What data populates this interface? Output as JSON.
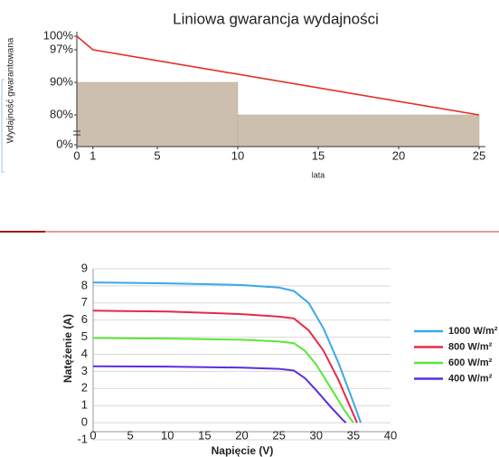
{
  "chart_data": [
    {
      "type": "line",
      "title": "Liniowa gwarancja wydajności",
      "xlabel": "lata",
      "ylabel": "Wydajność gwarantowana",
      "x": [
        0,
        1,
        25
      ],
      "series": [
        {
          "color": "#e0302a",
          "values": [
            100,
            97,
            80
          ]
        }
      ],
      "bars": {
        "bins": [
          0,
          10,
          25
        ],
        "values": [
          90,
          80
        ],
        "color": "#cdbfae"
      },
      "xlim": [
        0,
        25
      ],
      "xticks": [
        0,
        1,
        5,
        10,
        15,
        20,
        25
      ],
      "ylim": [
        0,
        100
      ],
      "yticks": [
        {
          "value": 0,
          "label": "0%"
        },
        {
          "value": 80,
          "label": "80%"
        },
        {
          "value": 90,
          "label": "90%"
        },
        {
          "value": 97,
          "label": "97%"
        },
        {
          "value": 100,
          "label": "100%"
        }
      ],
      "grid": false
    },
    {
      "type": "line",
      "xlabel": "Napięcie (V)",
      "ylabel": "Natężenie (A)",
      "series": [
        {
          "name": "1000 W/m²",
          "color": "#3aa8e8",
          "x": [
            0,
            10,
            20,
            25,
            27,
            29,
            31,
            33,
            35,
            36
          ],
          "values": [
            8.2,
            8.15,
            8.05,
            7.9,
            7.7,
            7.0,
            5.5,
            3.5,
            1.2,
            0
          ]
        },
        {
          "name": "800 W/m²",
          "color": "#e8284a",
          "x": [
            0,
            10,
            20,
            25,
            27,
            29,
            31,
            33,
            34.5,
            35.5
          ],
          "values": [
            6.55,
            6.5,
            6.35,
            6.2,
            6.1,
            5.4,
            4.2,
            2.5,
            1,
            0
          ]
        },
        {
          "name": "600 W/m²",
          "color": "#5ce63a",
          "x": [
            0,
            10,
            20,
            25,
            27,
            28.5,
            30,
            32,
            34,
            35
          ],
          "values": [
            4.95,
            4.92,
            4.85,
            4.75,
            4.65,
            4.2,
            3.4,
            2,
            0.6,
            0
          ]
        },
        {
          "name": "400 W/m²",
          "color": "#5a2ee0",
          "x": [
            0,
            10,
            20,
            25,
            27,
            28.5,
            30,
            32,
            33.5,
            34
          ],
          "values": [
            3.3,
            3.28,
            3.22,
            3.15,
            3.05,
            2.6,
            1.9,
            0.9,
            0.2,
            0
          ]
        }
      ],
      "xlim": [
        0,
        40
      ],
      "xticks": [
        0,
        5,
        10,
        15,
        20,
        25,
        30,
        35,
        40
      ],
      "ylim": [
        -1,
        9
      ],
      "yticks": [
        -1,
        0,
        1,
        2,
        3,
        4,
        5,
        6,
        7,
        8,
        9
      ],
      "grid": true
    }
  ]
}
